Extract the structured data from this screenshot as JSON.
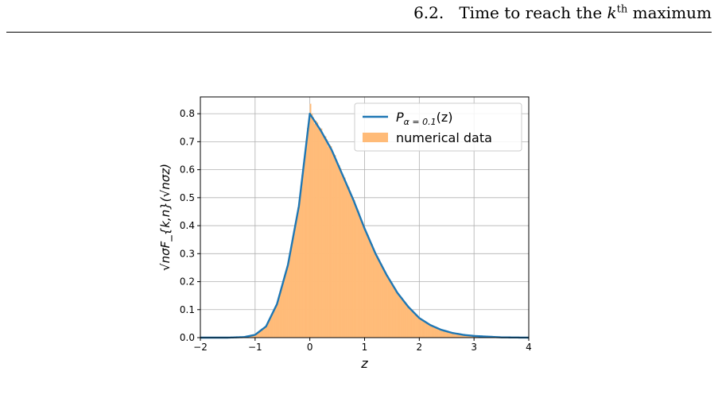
{
  "header": {
    "section_number": "6.2.",
    "title_pre": "Time to reach the",
    "k": "k",
    "sup": "th",
    "title_post": "maximum"
  },
  "chart_data": {
    "type": "bar",
    "xlabel": "z",
    "ylabel": "√nσF_{k,n}(√nσz)",
    "xlim": [
      -2,
      4
    ],
    "ylim": [
      0,
      0.86
    ],
    "xticks": [
      -2,
      -1,
      0,
      1,
      2,
      3,
      4
    ],
    "yticks": [
      0.0,
      0.1,
      0.2,
      0.3,
      0.4,
      0.5,
      0.6,
      0.7,
      0.8
    ],
    "grid": true,
    "legend_position": "top-right",
    "curve": {
      "name_math": "P_{α=0.1}(z)",
      "name_base": "P",
      "name_sub": "α = 0.1",
      "name_arg": "(z)",
      "color": "#1f77b4",
      "points": [
        [
          -2.0,
          0.0
        ],
        [
          -1.5,
          0.0
        ],
        [
          -1.2,
          0.002
        ],
        [
          -1.0,
          0.01
        ],
        [
          -0.8,
          0.04
        ],
        [
          -0.6,
          0.12
        ],
        [
          -0.4,
          0.26
        ],
        [
          -0.2,
          0.47
        ],
        [
          0.0,
          0.8
        ],
        [
          0.2,
          0.74
        ],
        [
          0.4,
          0.67
        ],
        [
          0.6,
          0.58
        ],
        [
          0.8,
          0.49
        ],
        [
          1.0,
          0.39
        ],
        [
          1.2,
          0.3
        ],
        [
          1.4,
          0.225
        ],
        [
          1.6,
          0.16
        ],
        [
          1.8,
          0.11
        ],
        [
          2.0,
          0.07
        ],
        [
          2.2,
          0.045
        ],
        [
          2.4,
          0.028
        ],
        [
          2.6,
          0.017
        ],
        [
          2.8,
          0.01
        ],
        [
          3.0,
          0.006
        ],
        [
          3.5,
          0.001
        ],
        [
          4.0,
          0.0
        ]
      ]
    },
    "histogram": {
      "name": "numerical data",
      "color": "#ffbb78",
      "bin_width": 0.025,
      "peak_bin": {
        "x": 0.0,
        "y": 0.835
      }
    }
  }
}
